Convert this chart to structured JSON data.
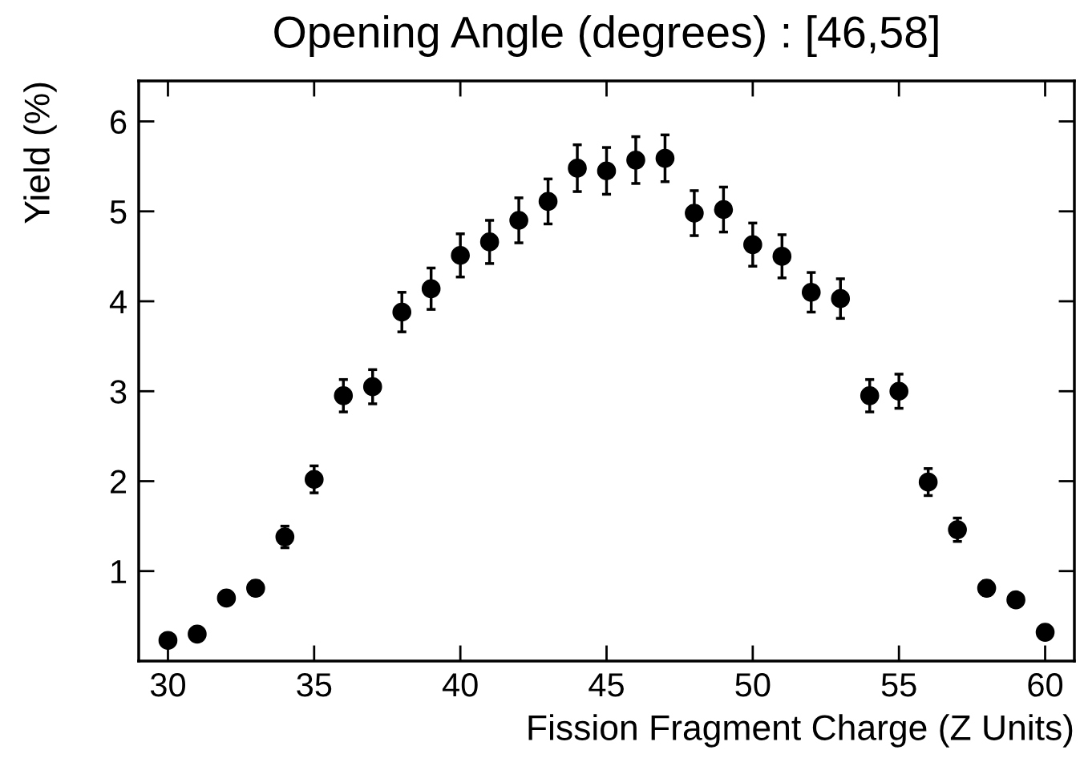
{
  "chart_data": {
    "type": "scatter",
    "title": "Opening Angle (degrees) : [46,58]",
    "xlabel": "Fission Fragment Charge (Z Units)",
    "ylabel": "Yield (%)",
    "x": [
      30,
      31,
      32,
      33,
      34,
      35,
      36,
      37,
      38,
      39,
      40,
      41,
      42,
      43,
      44,
      45,
      46,
      47,
      48,
      49,
      50,
      51,
      52,
      53,
      54,
      55,
      56,
      57,
      58,
      59,
      60
    ],
    "values": [
      0.23,
      0.3,
      0.7,
      0.81,
      1.38,
      2.02,
      2.95,
      3.05,
      3.88,
      4.14,
      4.51,
      4.66,
      4.9,
      5.11,
      5.48,
      5.45,
      5.57,
      5.59,
      4.98,
      5.02,
      4.63,
      4.5,
      4.1,
      4.03,
      2.95,
      3.0,
      1.99,
      1.46,
      0.81,
      0.68,
      0.32
    ],
    "errors": [
      0.05,
      0.05,
      0.07,
      0.08,
      0.12,
      0.15,
      0.18,
      0.19,
      0.22,
      0.23,
      0.24,
      0.24,
      0.25,
      0.25,
      0.26,
      0.26,
      0.26,
      0.26,
      0.25,
      0.25,
      0.24,
      0.24,
      0.22,
      0.22,
      0.18,
      0.19,
      0.15,
      0.13,
      0.08,
      0.07,
      0.05
    ],
    "color": "#000000",
    "marker": "circle",
    "xlim": [
      29,
      61
    ],
    "ylim": [
      0,
      6.45
    ],
    "xticks": [
      30,
      35,
      40,
      45,
      50,
      55,
      60
    ],
    "yticks": [
      1,
      2,
      3,
      4,
      5,
      6
    ],
    "grid": false,
    "legend": false
  }
}
